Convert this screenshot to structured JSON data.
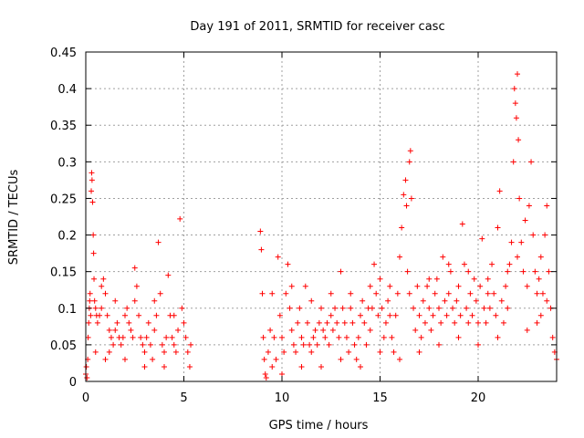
{
  "chart_data": {
    "type": "scatter",
    "title": "Day 191 of 2011, SRMTID for receiver casc",
    "xlabel": "GPS time / hours",
    "ylabel": "SRMTID / TECUs",
    "xlim": [
      0,
      24
    ],
    "ylim": [
      0,
      0.45
    ],
    "xticks": [
      0,
      5,
      10,
      15,
      20
    ],
    "yticks": [
      0,
      0.05,
      0.1,
      0.15,
      0.2,
      0.25,
      0.3,
      0.35,
      0.4,
      0.45
    ],
    "xtick_labels": [
      "0",
      "5",
      "10",
      "15",
      "20"
    ],
    "ytick_labels": [
      "0",
      "0.05",
      "0.1",
      "0.15",
      "0.2",
      "0.25",
      "0.3",
      "0.35",
      "0.4",
      "0.45"
    ],
    "grid": true,
    "marker": "+",
    "color": "#ff0000",
    "series": [
      {
        "name": "SRMTID",
        "points": [
          [
            0.0,
            0.01
          ],
          [
            0.03,
            0.02
          ],
          [
            0.06,
            0.005
          ],
          [
            0.1,
            0.03
          ],
          [
            0.12,
            0.06
          ],
          [
            0.15,
            0.08
          ],
          [
            0.18,
            0.1
          ],
          [
            0.2,
            0.11
          ],
          [
            0.22,
            0.12
          ],
          [
            0.25,
            0.09
          ],
          [
            0.28,
            0.26
          ],
          [
            0.3,
            0.285
          ],
          [
            0.32,
            0.275
          ],
          [
            0.35,
            0.245
          ],
          [
            0.38,
            0.2
          ],
          [
            0.4,
            0.175
          ],
          [
            0.42,
            0.14
          ],
          [
            0.45,
            0.11
          ],
          [
            0.5,
            0.1
          ],
          [
            0.55,
            0.09
          ],
          [
            0.6,
            0.08
          ],
          [
            0.7,
            0.09
          ],
          [
            0.8,
            0.1
          ],
          [
            0.9,
            0.14
          ],
          [
            1.0,
            0.12
          ],
          [
            1.1,
            0.09
          ],
          [
            1.2,
            0.07
          ],
          [
            1.3,
            0.06
          ],
          [
            1.4,
            0.05
          ],
          [
            1.5,
            0.07
          ],
          [
            1.6,
            0.08
          ],
          [
            1.7,
            0.06
          ],
          [
            1.8,
            0.05
          ],
          [
            1.9,
            0.06
          ],
          [
            2.0,
            0.09
          ],
          [
            2.1,
            0.1
          ],
          [
            2.2,
            0.08
          ],
          [
            2.3,
            0.07
          ],
          [
            2.4,
            0.06
          ],
          [
            2.5,
            0.155
          ],
          [
            2.6,
            0.13
          ],
          [
            2.7,
            0.09
          ],
          [
            2.8,
            0.06
          ],
          [
            2.9,
            0.05
          ],
          [
            3.0,
            0.04
          ],
          [
            3.1,
            0.06
          ],
          [
            3.2,
            0.08
          ],
          [
            3.3,
            0.05
          ],
          [
            3.4,
            0.03
          ],
          [
            3.5,
            0.07
          ],
          [
            3.6,
            0.09
          ],
          [
            3.7,
            0.19
          ],
          [
            3.8,
            0.12
          ],
          [
            3.9,
            0.05
          ],
          [
            4.0,
            0.04
          ],
          [
            4.1,
            0.06
          ],
          [
            4.2,
            0.145
          ],
          [
            4.3,
            0.09
          ],
          [
            4.4,
            0.06
          ],
          [
            4.5,
            0.05
          ],
          [
            4.6,
            0.04
          ],
          [
            4.7,
            0.07
          ],
          [
            4.8,
            0.222
          ],
          [
            4.9,
            0.1
          ],
          [
            5.0,
            0.08
          ],
          [
            5.1,
            0.06
          ],
          [
            5.2,
            0.04
          ],
          [
            5.3,
            0.02
          ],
          [
            5.35,
            0.05
          ],
          [
            0.5,
            0.04
          ],
          [
            1.0,
            0.03
          ],
          [
            2.0,
            0.03
          ],
          [
            3.0,
            0.02
          ],
          [
            4.0,
            0.02
          ],
          [
            4.5,
            0.09
          ],
          [
            3.5,
            0.11
          ],
          [
            2.5,
            0.11
          ],
          [
            1.5,
            0.11
          ],
          [
            0.8,
            0.13
          ],
          [
            1.2,
            0.04
          ],
          [
            8.9,
            0.205
          ],
          [
            8.95,
            0.18
          ],
          [
            9.0,
            0.12
          ],
          [
            9.05,
            0.06
          ],
          [
            9.1,
            0.03
          ],
          [
            9.15,
            0.01
          ],
          [
            9.2,
            0.005
          ],
          [
            9.3,
            0.04
          ],
          [
            9.4,
            0.07
          ],
          [
            9.5,
            0.12
          ],
          [
            9.6,
            0.06
          ],
          [
            9.7,
            0.03
          ],
          [
            9.8,
            0.17
          ],
          [
            9.9,
            0.09
          ],
          [
            10.0,
            0.06
          ],
          [
            10.1,
            0.04
          ],
          [
            10.2,
            0.12
          ],
          [
            10.3,
            0.16
          ],
          [
            10.4,
            0.1
          ],
          [
            10.5,
            0.07
          ],
          [
            10.6,
            0.05
          ],
          [
            10.7,
            0.04
          ],
          [
            10.8,
            0.08
          ],
          [
            10.9,
            0.1
          ],
          [
            11.0,
            0.06
          ],
          [
            11.1,
            0.05
          ],
          [
            11.2,
            0.13
          ],
          [
            11.3,
            0.08
          ],
          [
            11.4,
            0.05
          ],
          [
            11.5,
            0.04
          ],
          [
            11.6,
            0.06
          ],
          [
            11.7,
            0.07
          ],
          [
            11.8,
            0.05
          ],
          [
            11.9,
            0.08
          ],
          [
            12.0,
            0.1
          ],
          [
            12.1,
            0.07
          ],
          [
            12.2,
            0.06
          ],
          [
            12.3,
            0.08
          ],
          [
            12.4,
            0.05
          ],
          [
            12.5,
            0.09
          ],
          [
            12.6,
            0.07
          ],
          [
            12.7,
            0.1
          ],
          [
            12.8,
            0.08
          ],
          [
            12.9,
            0.06
          ],
          [
            13.0,
            0.15
          ],
          [
            13.1,
            0.1
          ],
          [
            13.2,
            0.08
          ],
          [
            13.3,
            0.06
          ],
          [
            13.4,
            0.04
          ],
          [
            13.5,
            0.12
          ],
          [
            13.6,
            0.08
          ],
          [
            13.7,
            0.05
          ],
          [
            13.8,
            0.03
          ],
          [
            13.9,
            0.06
          ],
          [
            14.0,
            0.09
          ],
          [
            14.1,
            0.11
          ],
          [
            14.2,
            0.08
          ],
          [
            14.3,
            0.05
          ],
          [
            14.4,
            0.1
          ],
          [
            14.5,
            0.13
          ],
          [
            14.6,
            0.1
          ],
          [
            14.7,
            0.16
          ],
          [
            14.8,
            0.12
          ],
          [
            14.9,
            0.09
          ],
          [
            15.0,
            0.14
          ],
          [
            15.1,
            0.1
          ],
          [
            15.2,
            0.06
          ],
          [
            15.3,
            0.08
          ],
          [
            15.4,
            0.11
          ],
          [
            15.5,
            0.09
          ],
          [
            15.6,
            0.06
          ],
          [
            15.7,
            0.04
          ],
          [
            15.8,
            0.09
          ],
          [
            15.9,
            0.12
          ],
          [
            16.0,
            0.17
          ],
          [
            16.1,
            0.21
          ],
          [
            16.2,
            0.255
          ],
          [
            16.3,
            0.275
          ],
          [
            16.35,
            0.24
          ],
          [
            16.4,
            0.15
          ],
          [
            16.5,
            0.3
          ],
          [
            16.55,
            0.315
          ],
          [
            16.6,
            0.25
          ],
          [
            16.7,
            0.1
          ],
          [
            16.8,
            0.07
          ],
          [
            16.9,
            0.13
          ],
          [
            17.0,
            0.09
          ],
          [
            17.1,
            0.06
          ],
          [
            17.2,
            0.11
          ],
          [
            17.3,
            0.08
          ],
          [
            17.4,
            0.13
          ],
          [
            17.5,
            0.1
          ],
          [
            17.6,
            0.07
          ],
          [
            17.7,
            0.09
          ],
          [
            17.8,
            0.12
          ],
          [
            17.9,
            0.14
          ],
          [
            18.0,
            0.1
          ],
          [
            18.1,
            0.08
          ],
          [
            18.2,
            0.17
          ],
          [
            18.3,
            0.11
          ],
          [
            18.4,
            0.09
          ],
          [
            18.5,
            0.12
          ],
          [
            18.6,
            0.15
          ],
          [
            18.7,
            0.1
          ],
          [
            18.8,
            0.08
          ],
          [
            18.9,
            0.11
          ],
          [
            19.0,
            0.13
          ],
          [
            19.1,
            0.09
          ],
          [
            19.2,
            0.215
          ],
          [
            19.3,
            0.16
          ],
          [
            19.4,
            0.1
          ],
          [
            19.5,
            0.08
          ],
          [
            19.6,
            0.12
          ],
          [
            19.7,
            0.09
          ],
          [
            19.8,
            0.14
          ],
          [
            19.9,
            0.11
          ],
          [
            20.0,
            0.08
          ],
          [
            20.1,
            0.13
          ],
          [
            20.2,
            0.195
          ],
          [
            20.3,
            0.1
          ],
          [
            20.4,
            0.08
          ],
          [
            20.5,
            0.12
          ],
          [
            20.6,
            0.1
          ],
          [
            20.7,
            0.16
          ],
          [
            20.8,
            0.12
          ],
          [
            20.9,
            0.09
          ],
          [
            21.0,
            0.21
          ],
          [
            21.1,
            0.26
          ],
          [
            21.2,
            0.11
          ],
          [
            21.3,
            0.08
          ],
          [
            21.4,
            0.13
          ],
          [
            21.5,
            0.1
          ],
          [
            21.6,
            0.16
          ],
          [
            21.7,
            0.19
          ],
          [
            21.8,
            0.3
          ],
          [
            21.85,
            0.4
          ],
          [
            21.9,
            0.38
          ],
          [
            21.95,
            0.36
          ],
          [
            22.0,
            0.42
          ],
          [
            22.05,
            0.33
          ],
          [
            22.1,
            0.25
          ],
          [
            22.2,
            0.19
          ],
          [
            22.3,
            0.15
          ],
          [
            22.4,
            0.22
          ],
          [
            22.5,
            0.13
          ],
          [
            22.6,
            0.24
          ],
          [
            22.7,
            0.3
          ],
          [
            22.8,
            0.2
          ],
          [
            22.9,
            0.15
          ],
          [
            23.0,
            0.12
          ],
          [
            23.1,
            0.14
          ],
          [
            23.2,
            0.17
          ],
          [
            23.3,
            0.12
          ],
          [
            23.4,
            0.2
          ],
          [
            23.5,
            0.24
          ],
          [
            23.6,
            0.15
          ],
          [
            23.7,
            0.1
          ],
          [
            23.8,
            0.06
          ],
          [
            23.9,
            0.04
          ],
          [
            24.0,
            0.03
          ],
          [
            23.0,
            0.08
          ],
          [
            22.5,
            0.07
          ],
          [
            21.0,
            0.06
          ],
          [
            20.0,
            0.05
          ],
          [
            19.0,
            0.06
          ],
          [
            18.0,
            0.05
          ],
          [
            17.0,
            0.04
          ],
          [
            16.0,
            0.03
          ],
          [
            15.0,
            0.04
          ],
          [
            14.0,
            0.02
          ],
          [
            13.0,
            0.03
          ],
          [
            12.0,
            0.02
          ],
          [
            11.0,
            0.02
          ],
          [
            10.0,
            0.01
          ],
          [
            9.5,
            0.02
          ],
          [
            10.5,
            0.13
          ],
          [
            11.5,
            0.11
          ],
          [
            12.5,
            0.12
          ],
          [
            13.5,
            0.1
          ],
          [
            14.5,
            0.07
          ],
          [
            15.5,
            0.13
          ],
          [
            16.5,
            0.12
          ],
          [
            17.5,
            0.14
          ],
          [
            18.5,
            0.16
          ],
          [
            19.5,
            0.15
          ],
          [
            20.5,
            0.14
          ],
          [
            21.5,
            0.15
          ],
          [
            22.0,
            0.17
          ],
          [
            23.5,
            0.11
          ],
          [
            23.2,
            0.09
          ]
        ]
      }
    ]
  }
}
